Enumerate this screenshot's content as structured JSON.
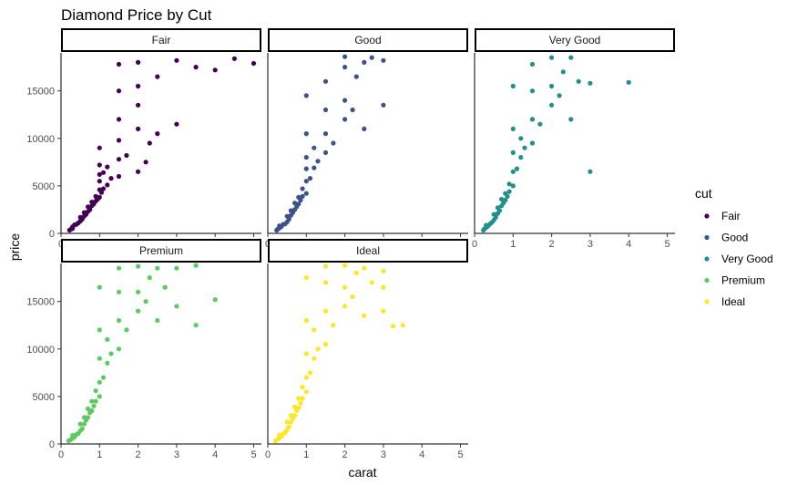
{
  "chart_data": {
    "type": "scatter",
    "title": "Diamond Price by Cut",
    "xlabel": "carat",
    "ylabel": "price",
    "xlim": [
      0,
      5.2
    ],
    "ylim": [
      0,
      19000
    ],
    "x_ticks": [
      0,
      1,
      2,
      3,
      4,
      5
    ],
    "y_ticks": [
      0,
      5000,
      10000,
      15000
    ],
    "legend_title": "cut",
    "legend_position": "right",
    "grid": false,
    "facet_layout": "3 columns, 2 rows",
    "panels": [
      {
        "name": "Fair",
        "color": "#440154",
        "points": [
          [
            0.22,
            340
          ],
          [
            0.25,
            420
          ],
          [
            0.3,
            520
          ],
          [
            0.3,
            700
          ],
          [
            0.35,
            900
          ],
          [
            0.4,
            950
          ],
          [
            0.45,
            1100
          ],
          [
            0.5,
            1300
          ],
          [
            0.5,
            1700
          ],
          [
            0.55,
            1500
          ],
          [
            0.6,
            1800
          ],
          [
            0.6,
            2200
          ],
          [
            0.65,
            2000
          ],
          [
            0.7,
            2300
          ],
          [
            0.7,
            2800
          ],
          [
            0.75,
            2500
          ],
          [
            0.8,
            2900
          ],
          [
            0.8,
            3300
          ],
          [
            0.85,
            3100
          ],
          [
            0.9,
            3400
          ],
          [
            0.9,
            3900
          ],
          [
            0.95,
            3600
          ],
          [
            1.0,
            3800
          ],
          [
            1.0,
            4600
          ],
          [
            1.0,
            5500
          ],
          [
            1.0,
            6200
          ],
          [
            1.0,
            7200
          ],
          [
            1.0,
            9000
          ],
          [
            1.05,
            4300
          ],
          [
            1.1,
            4700
          ],
          [
            1.1,
            6400
          ],
          [
            1.2,
            5100
          ],
          [
            1.2,
            7000
          ],
          [
            1.3,
            5800
          ],
          [
            1.5,
            6000
          ],
          [
            1.5,
            7800
          ],
          [
            1.5,
            9800
          ],
          [
            1.5,
            12000
          ],
          [
            1.5,
            15000
          ],
          [
            1.5,
            17800
          ],
          [
            1.7,
            8200
          ],
          [
            2.0,
            11000
          ],
          [
            2.0,
            13500
          ],
          [
            2.0,
            15500
          ],
          [
            2.0,
            18000
          ],
          [
            2.0,
            6500
          ],
          [
            2.2,
            7500
          ],
          [
            2.3,
            9500
          ],
          [
            2.5,
            10500
          ],
          [
            2.5,
            16500
          ],
          [
            3.0,
            11500
          ],
          [
            3.0,
            18200
          ],
          [
            3.5,
            17500
          ],
          [
            4.0,
            17200
          ],
          [
            4.5,
            18400
          ],
          [
            5.0,
            17900
          ]
        ]
      },
      {
        "name": "Good",
        "color": "#3b528b",
        "points": [
          [
            0.23,
            330
          ],
          [
            0.25,
            420
          ],
          [
            0.3,
            560
          ],
          [
            0.3,
            800
          ],
          [
            0.35,
            700
          ],
          [
            0.4,
            950
          ],
          [
            0.45,
            1000
          ],
          [
            0.5,
            1200
          ],
          [
            0.5,
            1800
          ],
          [
            0.55,
            1500
          ],
          [
            0.6,
            1900
          ],
          [
            0.6,
            2400
          ],
          [
            0.65,
            2200
          ],
          [
            0.7,
            2500
          ],
          [
            0.7,
            3200
          ],
          [
            0.75,
            2800
          ],
          [
            0.8,
            3100
          ],
          [
            0.8,
            3800
          ],
          [
            0.85,
            3500
          ],
          [
            0.9,
            3900
          ],
          [
            0.9,
            4700
          ],
          [
            1.0,
            4200
          ],
          [
            1.0,
            5500
          ],
          [
            1.0,
            6800
          ],
          [
            1.0,
            8000
          ],
          [
            1.0,
            10500
          ],
          [
            1.0,
            14500
          ],
          [
            1.1,
            5800
          ],
          [
            1.2,
            6900
          ],
          [
            1.2,
            9000
          ],
          [
            1.3,
            7600
          ],
          [
            1.5,
            8500
          ],
          [
            1.5,
            10500
          ],
          [
            1.5,
            13000
          ],
          [
            1.5,
            16000
          ],
          [
            1.7,
            9500
          ],
          [
            2.0,
            12000
          ],
          [
            2.0,
            14000
          ],
          [
            2.0,
            17500
          ],
          [
            2.0,
            18600
          ],
          [
            2.2,
            13000
          ],
          [
            2.3,
            16500
          ],
          [
            2.5,
            11000
          ],
          [
            2.5,
            18000
          ],
          [
            2.7,
            18500
          ],
          [
            3.0,
            13500
          ],
          [
            3.0,
            18200
          ]
        ]
      },
      {
        "name": "Very Good",
        "color": "#21908c",
        "points": [
          [
            0.23,
            340
          ],
          [
            0.25,
            460
          ],
          [
            0.3,
            600
          ],
          [
            0.3,
            850
          ],
          [
            0.35,
            780
          ],
          [
            0.4,
            1000
          ],
          [
            0.45,
            1150
          ],
          [
            0.5,
            1400
          ],
          [
            0.5,
            2000
          ],
          [
            0.55,
            1700
          ],
          [
            0.6,
            2100
          ],
          [
            0.6,
            2700
          ],
          [
            0.65,
            2400
          ],
          [
            0.7,
            2900
          ],
          [
            0.7,
            3600
          ],
          [
            0.75,
            3200
          ],
          [
            0.8,
            3500
          ],
          [
            0.8,
            4200
          ],
          [
            0.85,
            3900
          ],
          [
            0.9,
            4400
          ],
          [
            0.9,
            5200
          ],
          [
            1.0,
            5000
          ],
          [
            1.0,
            6500
          ],
          [
            1.0,
            8500
          ],
          [
            1.0,
            11000
          ],
          [
            1.0,
            15500
          ],
          [
            1.1,
            6800
          ],
          [
            1.2,
            8000
          ],
          [
            1.2,
            10000
          ],
          [
            1.3,
            9000
          ],
          [
            1.5,
            9500
          ],
          [
            1.5,
            12000
          ],
          [
            1.5,
            15000
          ],
          [
            1.5,
            17800
          ],
          [
            1.7,
            11500
          ],
          [
            2.0,
            13500
          ],
          [
            2.0,
            15500
          ],
          [
            2.0,
            18500
          ],
          [
            2.2,
            14500
          ],
          [
            2.3,
            17000
          ],
          [
            2.5,
            12000
          ],
          [
            2.5,
            18500
          ],
          [
            2.7,
            16000
          ],
          [
            3.0,
            6500
          ],
          [
            3.0,
            15800
          ],
          [
            4.0,
            15900
          ]
        ]
      },
      {
        "name": "Premium",
        "color": "#5ec962",
        "points": [
          [
            0.2,
            340
          ],
          [
            0.25,
            450
          ],
          [
            0.3,
            600
          ],
          [
            0.3,
            900
          ],
          [
            0.35,
            750
          ],
          [
            0.4,
            1000
          ],
          [
            0.45,
            1100
          ],
          [
            0.5,
            1400
          ],
          [
            0.5,
            2100
          ],
          [
            0.55,
            1600
          ],
          [
            0.6,
            2100
          ],
          [
            0.6,
            2800
          ],
          [
            0.65,
            2500
          ],
          [
            0.7,
            2800
          ],
          [
            0.7,
            3700
          ],
          [
            0.75,
            3300
          ],
          [
            0.8,
            3500
          ],
          [
            0.8,
            4500
          ],
          [
            0.85,
            4000
          ],
          [
            0.9,
            4500
          ],
          [
            0.9,
            5600
          ],
          [
            1.0,
            5000
          ],
          [
            1.0,
            6500
          ],
          [
            1.0,
            9000
          ],
          [
            1.0,
            12000
          ],
          [
            1.0,
            16500
          ],
          [
            1.1,
            7000
          ],
          [
            1.2,
            8500
          ],
          [
            1.2,
            11000
          ],
          [
            1.3,
            9500
          ],
          [
            1.5,
            10000
          ],
          [
            1.5,
            13000
          ],
          [
            1.5,
            16000
          ],
          [
            1.5,
            18500
          ],
          [
            1.7,
            12000
          ],
          [
            2.0,
            14000
          ],
          [
            2.0,
            16000
          ],
          [
            2.0,
            18700
          ],
          [
            2.2,
            15000
          ],
          [
            2.3,
            17500
          ],
          [
            2.5,
            13000
          ],
          [
            2.5,
            18500
          ],
          [
            2.7,
            16500
          ],
          [
            3.0,
            14500
          ],
          [
            3.0,
            18500
          ],
          [
            3.5,
            12500
          ],
          [
            3.5,
            18800
          ],
          [
            4.0,
            15200
          ]
        ]
      },
      {
        "name": "Ideal",
        "color": "#fde725",
        "points": [
          [
            0.2,
            330
          ],
          [
            0.25,
            460
          ],
          [
            0.3,
            620
          ],
          [
            0.3,
            950
          ],
          [
            0.35,
            800
          ],
          [
            0.4,
            1050
          ],
          [
            0.45,
            1200
          ],
          [
            0.5,
            1500
          ],
          [
            0.5,
            2300
          ],
          [
            0.55,
            1800
          ],
          [
            0.6,
            2300
          ],
          [
            0.6,
            3000
          ],
          [
            0.65,
            2700
          ],
          [
            0.7,
            3000
          ],
          [
            0.7,
            3900
          ],
          [
            0.75,
            3500
          ],
          [
            0.8,
            3800
          ],
          [
            0.8,
            4800
          ],
          [
            0.85,
            4300
          ],
          [
            0.9,
            4800
          ],
          [
            0.9,
            6000
          ],
          [
            1.0,
            5500
          ],
          [
            1.0,
            7000
          ],
          [
            1.0,
            9500
          ],
          [
            1.0,
            13000
          ],
          [
            1.0,
            17500
          ],
          [
            1.1,
            7500
          ],
          [
            1.2,
            9000
          ],
          [
            1.2,
            12000
          ],
          [
            1.3,
            10000
          ],
          [
            1.5,
            10500
          ],
          [
            1.5,
            14000
          ],
          [
            1.5,
            17000
          ],
          [
            1.5,
            18700
          ],
          [
            1.7,
            12500
          ],
          [
            2.0,
            14500
          ],
          [
            2.0,
            16500
          ],
          [
            2.0,
            18800
          ],
          [
            2.2,
            15500
          ],
          [
            2.3,
            18000
          ],
          [
            2.5,
            13500
          ],
          [
            2.5,
            18500
          ],
          [
            2.7,
            17000
          ],
          [
            3.0,
            14000
          ],
          [
            3.0,
            16500
          ],
          [
            3.0,
            18200
          ],
          [
            3.25,
            12400
          ],
          [
            3.5,
            12500
          ]
        ]
      }
    ]
  }
}
